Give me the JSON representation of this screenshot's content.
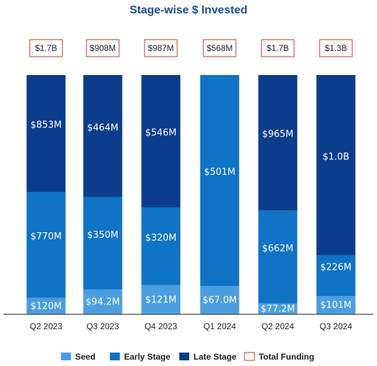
{
  "chart_data": {
    "type": "bar",
    "stacked": true,
    "title": "Stage-wise $ Invested",
    "categories": [
      "Q2 2023",
      "Q3 2023",
      "Q4 2023",
      "Q1 2024",
      "Q2 2024",
      "Q3 2024"
    ],
    "series": [
      {
        "name": "Seed",
        "color": "#4a9ee0",
        "values_musd": [
          120,
          94.2,
          121,
          67.0,
          77.2,
          101
        ],
        "labels": [
          "$120M",
          "$94.2M",
          "$121M",
          "$67.0M",
          "$77.2M",
          "$101M"
        ]
      },
      {
        "name": "Early Stage",
        "color": "#0f73c6",
        "values_musd": [
          770,
          350,
          320,
          501,
          662,
          226
        ],
        "labels": [
          "$770M",
          "$350M",
          "$320M",
          "$501M",
          "$662M",
          "$226M"
        ]
      },
      {
        "name": "Late Stage",
        "color": "#0b3d8c",
        "values_musd": [
          853,
          464,
          546,
          0,
          965,
          1000
        ],
        "labels": [
          "$853M",
          "$464M",
          "$546M",
          "",
          "$965M",
          "$1.0B"
        ]
      }
    ],
    "total_funding": {
      "name": "Total Funding",
      "color": "#c0392b",
      "labels": [
        "$1.7B",
        "$908M",
        "$987M",
        "$568M",
        "$1.7B",
        "$1.3B"
      ]
    },
    "normalized_100_percent": true,
    "legend_position": "bottom",
    "grid": false
  }
}
